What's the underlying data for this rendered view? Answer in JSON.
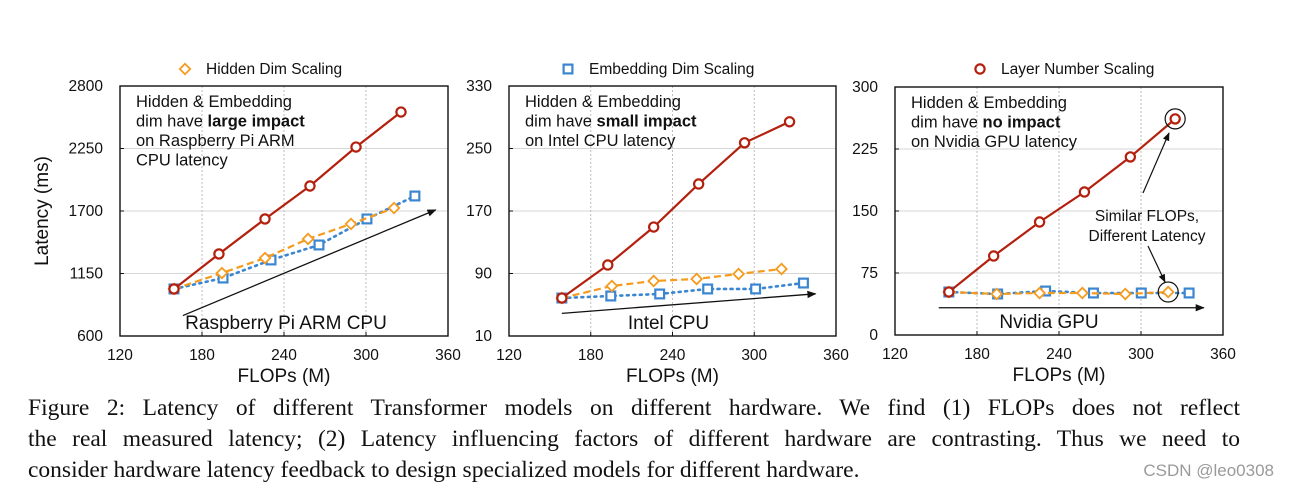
{
  "chart_data": [
    {
      "type": "line",
      "legend_label": "Hidden Dim Scaling",
      "legend_marker": "diamond",
      "legend_color": "#F59B1E",
      "title": "",
      "xlabel": "FLOPs (M)",
      "ylabel": "Latency (ms)",
      "xlim": [
        120,
        360
      ],
      "ylim": [
        600,
        2800
      ],
      "xticks": [
        120,
        180,
        240,
        300,
        360
      ],
      "yticks": [
        600,
        1150,
        1700,
        2250,
        2800
      ],
      "grid": true,
      "annotation_lines": [
        [
          {
            "t": "Hidden & Embedding",
            "b": false
          }
        ],
        [
          {
            "t": "dim have ",
            "b": false
          },
          {
            "t": "large impact",
            "b": true
          }
        ],
        [
          {
            "t": "on Raspberry Pi ARM",
            "b": false
          }
        ],
        [
          {
            "t": "CPU latency",
            "b": false
          }
        ]
      ],
      "hardware_label": "Raspberry Pi ARM CPU",
      "trend_arrow": {
        "from": [
          166,
          780
        ],
        "to": [
          351,
          1710
        ]
      },
      "series": [
        {
          "name": "Layer Number Scaling",
          "marker": "circle",
          "style": "solid",
          "color": "#B3200E",
          "x": [
            159.5,
            192.4,
            226.1,
            259.0,
            292.7,
            325.6
          ],
          "y": [
            1014,
            1322,
            1630,
            1920,
            2263,
            2571
          ]
        },
        {
          "name": "Hidden Dim Scaling",
          "marker": "diamond",
          "style": "dashed",
          "color": "#F59B1E",
          "x": [
            159.5,
            194.6,
            226.1,
            257.6,
            289.0,
            320.5
          ],
          "y": [
            1014,
            1154,
            1286,
            1454,
            1586,
            1726
          ]
        },
        {
          "name": "Embedding Dim Scaling",
          "marker": "square",
          "style": "dotted",
          "color": "#3A86D0",
          "x": [
            159.5,
            195.4,
            230.5,
            265.6,
            300.7,
            335.8
          ],
          "y": [
            1014,
            1110,
            1269,
            1401,
            1630,
            1832
          ]
        }
      ]
    },
    {
      "type": "line",
      "legend_label": "Embedding Dim Scaling",
      "legend_marker": "square",
      "legend_color": "#3A86D0",
      "title": "",
      "xlabel": "FLOPs (M)",
      "ylabel": "",
      "xlim": [
        120,
        360
      ],
      "ylim": [
        10,
        330
      ],
      "xticks": [
        120,
        180,
        240,
        300,
        360
      ],
      "yticks": [
        10,
        90,
        170,
        250,
        330
      ],
      "grid": true,
      "annotation_lines": [
        [
          {
            "t": "Hidden & Embedding",
            "b": false
          }
        ],
        [
          {
            "t": "dim have ",
            "b": false
          },
          {
            "t": "small impact",
            "b": true
          }
        ],
        [
          {
            "t": "on Intel CPU latency",
            "b": false
          }
        ]
      ],
      "hardware_label": "Intel CPU",
      "trend_arrow": {
        "from": [
          158.8,
          39
        ],
        "to": [
          345,
          64
        ]
      },
      "series": [
        {
          "name": "Layer Number Scaling",
          "marker": "circle",
          "style": "solid",
          "color": "#B3200E",
          "x": [
            158.8,
            192.5,
            226.2,
            259.2,
            292.9,
            325.9
          ],
          "y": [
            58.6,
            100.9,
            149.5,
            204.6,
            257.3,
            284.2
          ]
        },
        {
          "name": "Hidden Dim Scaling",
          "marker": "diamond",
          "style": "dashed",
          "color": "#F59B1E",
          "x": [
            158.8,
            195.5,
            226.2,
            257.7,
            288.5,
            320.0
          ],
          "y": [
            58.6,
            74.0,
            80.4,
            83.0,
            89.4,
            95.8
          ]
        },
        {
          "name": "Embedding Dim Scaling",
          "marker": "square",
          "style": "dotted",
          "color": "#3A86D0",
          "x": [
            158.8,
            194.7,
            230.6,
            265.8,
            301.0,
            336.1
          ],
          "y": [
            58.6,
            61.2,
            63.8,
            70.2,
            70.2,
            77.8
          ]
        }
      ]
    },
    {
      "type": "line",
      "legend_label": "Layer Number Scaling",
      "legend_marker": "circle",
      "legend_color": "#B3200E",
      "title": "",
      "xlabel": "FLOPs (M)",
      "ylabel": "",
      "xlim": [
        120,
        360
      ],
      "ylim": [
        0,
        300
      ],
      "xticks": [
        120,
        180,
        240,
        300,
        360
      ],
      "yticks": [
        0,
        75,
        150,
        225,
        300
      ],
      "grid": true,
      "annotation_lines": [
        [
          {
            "t": "Hidden & Embedding",
            "b": false
          }
        ],
        [
          {
            "t": "dim have ",
            "b": false
          },
          {
            "t": "no impact",
            "b": true
          }
        ],
        [
          {
            "t": "on Nvidia GPU latency",
            "b": false
          }
        ]
      ],
      "hardware_label": "Nvidia GPU",
      "trend_arrow": {
        "from": [
          152,
          33
        ],
        "to": [
          346,
          33
        ]
      },
      "callout": {
        "lines": [
          "Similar FLOPs,",
          "Different Latency"
        ],
        "highlight_points": [
          [
            325.0,
            261.4
          ],
          [
            319.9,
            52.0
          ]
        ]
      },
      "series": [
        {
          "name": "Layer Number Scaling",
          "marker": "circle",
          "style": "solid",
          "color": "#B3200E",
          "x": [
            159.4,
            192.2,
            225.8,
            258.6,
            292.2,
            325.0
          ],
          "y": [
            52.0,
            95.6,
            136.7,
            173.0,
            215.4,
            261.4
          ]
        },
        {
          "name": "Hidden Dim Scaling",
          "marker": "diamond",
          "style": "dashed",
          "color": "#F59B1E",
          "x": [
            159.4,
            194.4,
            225.8,
            257.1,
            288.5,
            319.9
          ],
          "y": [
            52.0,
            49.6,
            50.8,
            50.8,
            49.6,
            52.0
          ]
        },
        {
          "name": "Embedding Dim Scaling",
          "marker": "square",
          "style": "dotted",
          "color": "#3A86D0",
          "x": [
            159.4,
            195.1,
            230.2,
            265.2,
            300.2,
            335.2
          ],
          "y": [
            52.0,
            49.6,
            53.2,
            50.8,
            50.8,
            50.8
          ]
        }
      ]
    }
  ],
  "caption": {
    "lines": [
      "Figure 2:  Latency of different Transformer models on different hardware.  We find (1) FLOPs does not reflect",
      "the real measured latency; (2) Latency influencing factors of different hardware are contrasting. Thus we need to",
      "consider hardware latency feedback to design specialized models for different hardware."
    ]
  },
  "watermark": "CSDN @leo0308"
}
